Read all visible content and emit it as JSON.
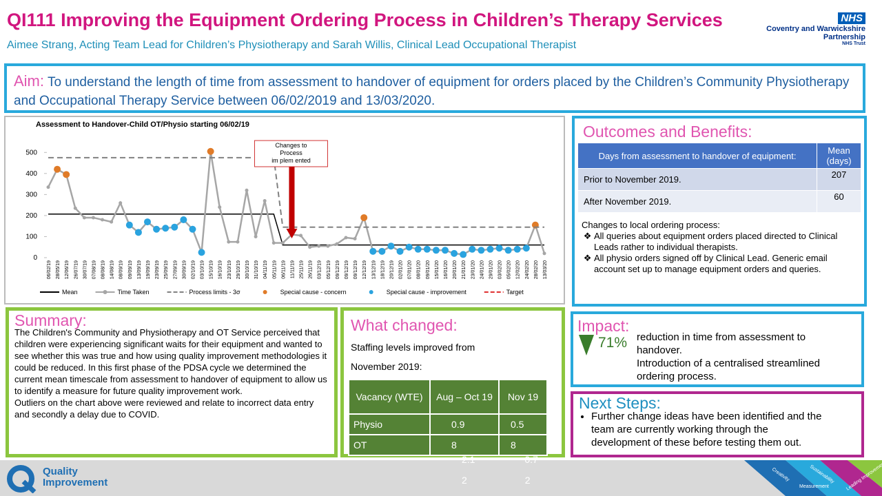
{
  "header": {
    "title": "QI111 Improving the Equipment Ordering Process in Children’s Therapy Services",
    "subtitle": "Aimee Strang, Acting Team Lead for Children’s Physiotherapy and Sarah Willis, Clinical Lead Occupational Therapist",
    "logo": {
      "nhs": "NHS",
      "org": "Coventry and Warwickshire Partnership",
      "trust": "NHS Trust"
    }
  },
  "aim": {
    "label": "Aim:",
    "text": "To understand the length of time from assessment to handover of equipment for orders placed by the Children’s Community Physiotherapy and Occupational Therapy Service between 06/02/2019 and 13/03/2020."
  },
  "chart": {
    "type": "line",
    "title": "Assessment to Handover-Child OT/Physio starting 06/02/19",
    "categories": [
      "06/02/19",
      "28/05/19",
      "12/06/19",
      "26/07/19",
      "30/07/19",
      "07/08/19",
      "08/08/19",
      "14/08/19",
      "08/09/19",
      "09/09/19",
      "13/09/19",
      "19/09/19",
      "23/09/19",
      "25/09/19",
      "27/09/19",
      "30/09/19",
      "02/10/19",
      "03/10/19",
      "15/10/19",
      "16/10/19",
      "23/10/19",
      "29/10/19",
      "30/10/19",
      "31/10/19",
      "04/11/19",
      "05/11/19",
      "06/11/19",
      "11/11/19",
      "25/11/19",
      "26/11/19",
      "03/12/19",
      "05/12/19",
      "09/12/19",
      "09/12/19",
      "09/12/19",
      "12/12/19",
      "13/12/19",
      "18/12/19",
      "20/12/19",
      "02/01/20",
      "07/01/20",
      "08/01/20",
      "09/01/20",
      "15/01/20",
      "16/01/20",
      "20/01/20",
      "21/01/20",
      "23/01/20",
      "24/01/20",
      "29/01/20",
      "03/02/20",
      "05/02/20",
      "12/02/20",
      "24/02/20",
      "28/02/20",
      "13/03/20"
    ],
    "series": [
      {
        "name": "Mean",
        "color": "#000000",
        "style": "solid",
        "values": [
          207,
          207,
          207,
          207,
          207,
          207,
          207,
          207,
          207,
          207,
          207,
          207,
          207,
          207,
          207,
          207,
          207,
          207,
          207,
          207,
          207,
          207,
          207,
          207,
          207,
          207,
          60,
          60,
          60,
          60,
          60,
          60,
          60,
          60,
          60,
          60,
          60,
          60,
          60,
          60,
          60,
          60,
          60,
          60,
          60,
          60,
          60,
          60,
          60,
          60,
          60,
          60,
          60,
          60,
          60,
          60
        ]
      },
      {
        "name": "Time Taken",
        "color": "#a6a6a6",
        "style": "line-marker",
        "values": [
          335,
          420,
          395,
          235,
          190,
          190,
          180,
          170,
          260,
          155,
          120,
          170,
          135,
          140,
          145,
          180,
          135,
          25,
          505,
          240,
          75,
          75,
          320,
          100,
          270,
          70,
          70,
          110,
          105,
          50,
          55,
          55,
          65,
          95,
          90,
          190,
          30,
          30,
          55,
          30,
          50,
          40,
          40,
          35,
          35,
          20,
          15,
          40,
          35,
          40,
          45,
          35,
          40,
          45,
          155,
          20
        ],
        "marker_colors": [
          "#a6a6a6",
          "#e07b28",
          "#e07b28",
          "#a6a6a6",
          "#a6a6a6",
          "#a6a6a6",
          "#a6a6a6",
          "#a6a6a6",
          "#a6a6a6",
          "#2aa3df",
          "#2aa3df",
          "#2aa3df",
          "#2aa3df",
          "#2aa3df",
          "#2aa3df",
          "#2aa3df",
          "#2aa3df",
          "#2aa3df",
          "#e07b28",
          "#a6a6a6",
          "#a6a6a6",
          "#a6a6a6",
          "#a6a6a6",
          "#a6a6a6",
          "#a6a6a6",
          "#a6a6a6",
          "#a6a6a6",
          "#a6a6a6",
          "#a6a6a6",
          "#a6a6a6",
          "#a6a6a6",
          "#a6a6a6",
          "#a6a6a6",
          "#a6a6a6",
          "#a6a6a6",
          "#e07b28",
          "#2aa3df",
          "#2aa3df",
          "#2aa3df",
          "#2aa3df",
          "#2aa3df",
          "#2aa3df",
          "#2aa3df",
          "#2aa3df",
          "#2aa3df",
          "#2aa3df",
          "#2aa3df",
          "#2aa3df",
          "#2aa3df",
          "#2aa3df",
          "#2aa3df",
          "#2aa3df",
          "#2aa3df",
          "#2aa3df",
          "#e07b28",
          "#a6a6a6"
        ]
      },
      {
        "name": "Process limits - 3σ",
        "color": "#808080",
        "style": "dashed",
        "values": [
          475,
          475,
          475,
          475,
          475,
          475,
          475,
          475,
          475,
          475,
          475,
          475,
          475,
          475,
          475,
          475,
          475,
          475,
          475,
          475,
          475,
          475,
          475,
          475,
          475,
          475,
          145,
          145,
          145,
          145,
          145,
          145,
          145,
          145,
          145,
          145,
          145,
          145,
          145,
          145,
          145,
          145,
          145,
          145,
          145,
          145,
          145,
          145,
          145,
          145,
          145,
          145,
          145,
          145,
          145,
          145
        ]
      },
      {
        "name": "Special cause - concern",
        "color": "#e07b28",
        "style": "marker"
      },
      {
        "name": "Special cause - improvement",
        "color": "#2aa3df",
        "style": "marker"
      },
      {
        "name": "Target",
        "color": "#e03030",
        "style": "dashed"
      }
    ],
    "ylim": [
      0,
      550
    ],
    "yticks": [
      0,
      100,
      200,
      300,
      400,
      500
    ],
    "annotation": {
      "text": [
        "Changes to",
        "Process",
        "im plem ented"
      ],
      "at": "11/11/19"
    }
  },
  "outcomes": {
    "title": "Outcomes and Benefits:",
    "table": {
      "headers": [
        "Days from assessment to handover of equipment:",
        "Mean (days)"
      ],
      "rows": [
        [
          "Prior to November 2019.",
          207
        ],
        [
          "After November 2019.",
          60
        ]
      ]
    },
    "changes_title": "Changes to local ordering process:",
    "bullets": [
      "All queries about equipment orders placed directed to Clinical Leads rather to individual therapists.",
      "All physio orders signed off by Clinical Lead. Generic email account set up to manage equipment orders and queries."
    ]
  },
  "summary": {
    "title": "Summary:",
    "paragraphs": [
      "The Children's Community and Physiotherapy and OT Service perceived that children were experiencing significant waits for their equipment and wanted to see whether this was true and how using quality improvement methodologies it could be reduced. In this first phase of the PDSA cycle we determined the current mean timescale from assessment to handover of equipment to allow us to identify a measure for future quality improvement work.",
      "Outliers on the chart above were reviewed and relate to incorrect data entry and secondly a delay due to COVID."
    ]
  },
  "what_changed": {
    "title": "What changed:",
    "text": "Staffing levels improved from November 2019:",
    "table": {
      "headers": [
        "Vacancy (WTE)",
        "Aug – Oct 19",
        "Nov 19"
      ],
      "rows": [
        [
          "Physio",
          0.9,
          0.5
        ],
        [
          "OT",
          8,
          8
        ]
      ],
      "overflow": [
        [
          "2.1",
          "0.7"
        ],
        [
          "2",
          "2"
        ]
      ]
    }
  },
  "impact": {
    "title": "Impact:",
    "value": "71%",
    "text": "reduction in time from assessment to handover.",
    "text2": "Introduction of a centralised streamlined ordering process."
  },
  "next_steps": {
    "title": "Next Steps:",
    "bullets": [
      "Further change ideas have been identified and the team are currently working through the development of these before testing them out."
    ]
  },
  "footer": {
    "logo": "Quality Improvement",
    "ribbon": [
      "Creativity",
      "Sustainability",
      "Measurement",
      "Leading Improvement"
    ]
  }
}
